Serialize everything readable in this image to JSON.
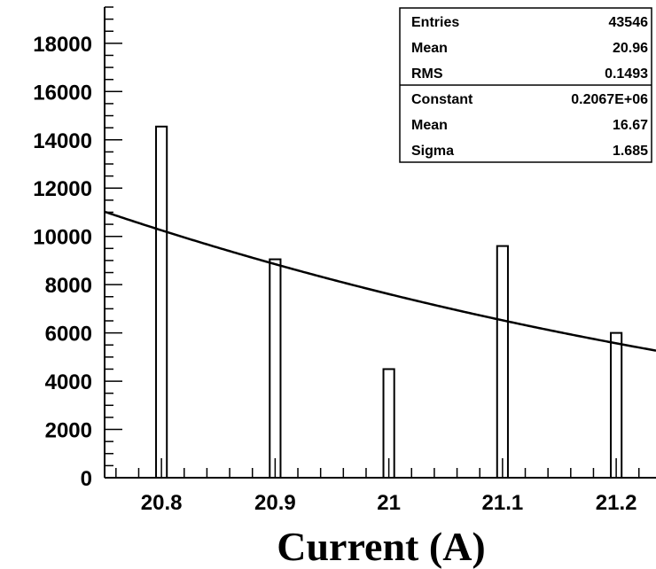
{
  "chart_data": {
    "type": "bar",
    "title": "",
    "xlabel": "Current (A)",
    "ylabel": "",
    "xlim": [
      20.75,
      21.235
    ],
    "ylim": [
      0,
      19500
    ],
    "x_ticks": [
      "20.8",
      "20.9",
      "21",
      "21.1",
      "21.2"
    ],
    "x_tick_values": [
      20.8,
      20.9,
      21.0,
      21.1,
      21.2
    ],
    "y_ticks": [
      "0",
      "2000",
      "4000",
      "6000",
      "8000",
      "10000",
      "12000",
      "14000",
      "16000",
      "18000"
    ],
    "y_tick_values": [
      0,
      2000,
      4000,
      6000,
      8000,
      10000,
      12000,
      14000,
      16000,
      18000
    ],
    "bars": [
      {
        "x": 20.8,
        "value": 14550
      },
      {
        "x": 20.9,
        "value": 9050
      },
      {
        "x": 21.0,
        "value": 4500
      },
      {
        "x": 21.1,
        "value": 9600
      },
      {
        "x": 21.2,
        "value": 6000
      }
    ],
    "fit": {
      "type": "gaussian",
      "constant": 206700,
      "mean": 16.67,
      "sigma": 1.685
    },
    "stats": [
      {
        "label": "Entries",
        "value": "43546"
      },
      {
        "label": "Mean",
        "value": "20.96"
      },
      {
        "label": "RMS",
        "value": "0.1493"
      },
      {
        "label": "Constant",
        "value": "0.2067E+06"
      },
      {
        "label": "Mean",
        "value": "16.67"
      },
      {
        "label": "Sigma",
        "value": "1.685"
      }
    ],
    "grid": false,
    "stats_box_position": "top-right"
  }
}
